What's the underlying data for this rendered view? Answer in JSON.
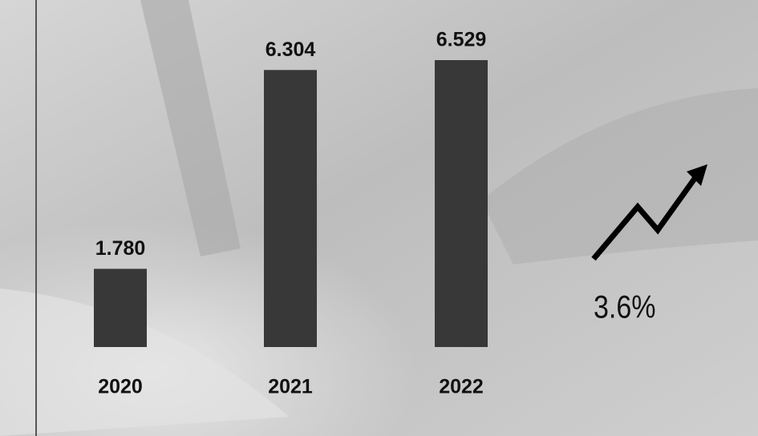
{
  "chart_data": {
    "type": "bar",
    "categories": [
      "2020",
      "2021",
      "2022"
    ],
    "values": [
      1.78,
      6.304,
      6.529
    ],
    "value_labels": [
      "1.780",
      "6.304",
      "6.529"
    ],
    "color": "#383838",
    "annotation": "3.6%"
  }
}
